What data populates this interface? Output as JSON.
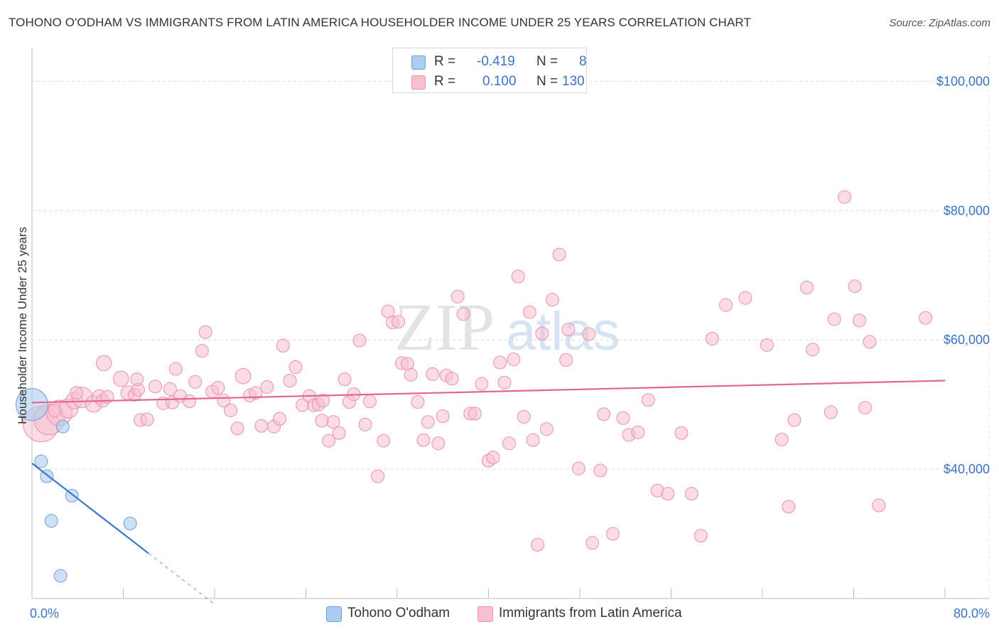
{
  "title": "TOHONO O'ODHAM VS IMMIGRANTS FROM LATIN AMERICA HOUSEHOLDER INCOME UNDER 25 YEARS CORRELATION CHART",
  "source": "Source: ZipAtlas.com",
  "watermark": {
    "zip": "ZIP",
    "atlas": "atlas"
  },
  "colors": {
    "blue_fill": "#aecbf0",
    "blue_stroke": "#6f9fd9",
    "blue_line": "#3a78cc",
    "pink_fill": "#f8bfd0",
    "pink_stroke": "#ec90ad",
    "pink_line": "#e2668f",
    "tick": "#3b73c4"
  },
  "stats": {
    "r_label": "R =",
    "n_label": "N =",
    "series": [
      {
        "r": "-0.419",
        "n": "8"
      },
      {
        "r": "0.100",
        "n": "130"
      }
    ]
  },
  "legend": [
    {
      "label": "Tohono O'odham"
    },
    {
      "label": "Immigrants from Latin America"
    }
  ],
  "chart_data": {
    "type": "scatter",
    "title": "TOHONO O'ODHAM VS IMMIGRANTS FROM LATIN AMERICA HOUSEHOLDER INCOME UNDER 25 YEARS CORRELATION CHART",
    "xlabel": "",
    "ylabel": "Householder Income Under 25 years",
    "xlim": [
      0,
      80
    ],
    "ylim": [
      20000,
      104000
    ],
    "x_tick_labels": [
      "0.0%",
      "80.0%"
    ],
    "y_ticks": [
      40000,
      60000,
      80000,
      100000
    ],
    "y_tick_labels": [
      "$40,000",
      "$60,000",
      "$80,000",
      "$100,000"
    ],
    "grid": true,
    "series": [
      {
        "name": "Tohono O'odham",
        "points": [
          [
            0,
            50000,
            2.5
          ],
          [
            2.7,
            46600,
            1
          ],
          [
            0.8,
            41200,
            1
          ],
          [
            1.3,
            38900,
            1
          ],
          [
            3.5,
            35900,
            1
          ],
          [
            1.7,
            32000,
            1
          ],
          [
            8.6,
            31600,
            1
          ],
          [
            2.5,
            23500,
            1
          ]
        ],
        "trend": {
          "x0": 0,
          "y0": 40900,
          "x1": 10.2,
          "y1": 27000,
          "dash_to_x": 16.0
        }
      },
      {
        "name": "Immigrants from Latin America",
        "points": [
          [
            0.8,
            47000,
            2.8
          ],
          [
            1.5,
            47700,
            2.4
          ],
          [
            2.4,
            48700,
            2.0
          ],
          [
            3.2,
            49400,
            1.5
          ],
          [
            3.7,
            50600,
            1.3
          ],
          [
            4.4,
            51100,
            1.6
          ],
          [
            5.4,
            50100,
            1.3
          ],
          [
            5.9,
            51200,
            1.1
          ],
          [
            6.2,
            50600,
            1.0
          ],
          [
            6.3,
            56400,
            1.2
          ],
          [
            6.6,
            51200,
            1.0
          ],
          [
            7.8,
            54000,
            1.2
          ],
          [
            8.4,
            51800,
            1.1
          ],
          [
            9.0,
            51500,
            1.0
          ],
          [
            9.3,
            52300,
            1.0
          ],
          [
            9.5,
            47600,
            1.0
          ],
          [
            10.1,
            47700,
            1.0
          ],
          [
            10.8,
            52800,
            1.0
          ],
          [
            11.5,
            50200,
            1.0
          ],
          [
            12.1,
            52400,
            1.0
          ],
          [
            12.3,
            50300,
            1.0
          ],
          [
            12.6,
            55500,
            1.0
          ],
          [
            13.0,
            51300,
            1.0
          ],
          [
            13.8,
            50500,
            1.0
          ],
          [
            14.3,
            53500,
            1.0
          ],
          [
            14.9,
            58300,
            1.0
          ],
          [
            15.2,
            61200,
            1.0
          ],
          [
            15.8,
            52000,
            1.0
          ],
          [
            16.3,
            52600,
            1.0
          ],
          [
            16.8,
            50600,
            1.0
          ],
          [
            17.4,
            49100,
            1.0
          ],
          [
            18.0,
            46300,
            1.0
          ],
          [
            18.5,
            54400,
            1.2
          ],
          [
            19.1,
            51400,
            1.0
          ],
          [
            19.6,
            51800,
            1.0
          ],
          [
            20.1,
            46700,
            1.0
          ],
          [
            20.6,
            52700,
            1.0
          ],
          [
            21.2,
            46600,
            1.0
          ],
          [
            21.7,
            47800,
            1.0
          ],
          [
            22.0,
            59100,
            1.0
          ],
          [
            22.6,
            53700,
            1.0
          ],
          [
            23.1,
            55800,
            1.0
          ],
          [
            23.7,
            49900,
            1.0
          ],
          [
            24.3,
            51300,
            1.0
          ],
          [
            24.7,
            49900,
            1.0
          ],
          [
            25.1,
            50000,
            1.0
          ],
          [
            25.5,
            50600,
            1.0
          ],
          [
            26.0,
            44400,
            1.0
          ],
          [
            26.4,
            47300,
            1.0
          ],
          [
            26.9,
            45600,
            1.0
          ],
          [
            27.4,
            53900,
            1.0
          ],
          [
            27.8,
            50400,
            1.0
          ],
          [
            28.2,
            51600,
            1.0
          ],
          [
            28.7,
            59900,
            1.0
          ],
          [
            29.2,
            46900,
            1.0
          ],
          [
            29.6,
            50500,
            1.0
          ],
          [
            30.3,
            38900,
            1.0
          ],
          [
            30.8,
            44400,
            1.0
          ],
          [
            31.2,
            64400,
            1.0
          ],
          [
            31.6,
            62700,
            1.0
          ],
          [
            32.1,
            62800,
            1.0
          ],
          [
            32.4,
            56400,
            1.0
          ],
          [
            32.9,
            56300,
            1.0
          ],
          [
            33.2,
            54600,
            1.0
          ],
          [
            33.8,
            50400,
            1.0
          ],
          [
            34.3,
            44500,
            1.0
          ],
          [
            34.7,
            47300,
            1.0
          ],
          [
            35.1,
            54700,
            1.0
          ],
          [
            35.6,
            44000,
            1.0
          ],
          [
            36.0,
            48200,
            1.0
          ],
          [
            36.3,
            54500,
            1.0
          ],
          [
            36.8,
            54000,
            1.0
          ],
          [
            37.3,
            66700,
            1.0
          ],
          [
            37.8,
            64000,
            1.0
          ],
          [
            38.4,
            48600,
            1.0
          ],
          [
            38.8,
            48600,
            1.0
          ],
          [
            39.4,
            53200,
            1.0
          ],
          [
            40.0,
            41300,
            1.0
          ],
          [
            40.4,
            41800,
            1.0
          ],
          [
            41.0,
            56500,
            1.0
          ],
          [
            41.4,
            53400,
            1.0
          ],
          [
            41.8,
            44000,
            1.0
          ],
          [
            42.2,
            57000,
            1.0
          ],
          [
            42.6,
            69800,
            1.0
          ],
          [
            43.1,
            48100,
            1.0
          ],
          [
            43.6,
            64300,
            1.0
          ],
          [
            43.9,
            44500,
            1.0
          ],
          [
            44.3,
            28300,
            1.0
          ],
          [
            44.7,
            61000,
            1.0
          ],
          [
            45.1,
            46200,
            1.0
          ],
          [
            45.6,
            66200,
            1.0
          ],
          [
            46.2,
            73200,
            1.0
          ],
          [
            46.8,
            56900,
            1.0
          ],
          [
            47.0,
            61600,
            1.0
          ],
          [
            47.9,
            40100,
            1.0
          ],
          [
            48.8,
            60900,
            1.0
          ],
          [
            49.1,
            28600,
            1.0
          ],
          [
            49.8,
            39800,
            1.0
          ],
          [
            50.1,
            48500,
            1.0
          ],
          [
            50.9,
            30000,
            1.0
          ],
          [
            51.8,
            47900,
            1.0
          ],
          [
            52.3,
            45300,
            1.0
          ],
          [
            53.1,
            45700,
            1.0
          ],
          [
            54.0,
            50700,
            1.0
          ],
          [
            54.8,
            36700,
            1.0
          ],
          [
            55.7,
            36200,
            1.0
          ],
          [
            56.9,
            45600,
            1.0
          ],
          [
            57.8,
            36200,
            1.0
          ],
          [
            59.6,
            60200,
            1.0
          ],
          [
            60.8,
            65400,
            1.0
          ],
          [
            62.5,
            66500,
            1.0
          ],
          [
            64.4,
            59200,
            1.0
          ],
          [
            65.7,
            44600,
            1.0
          ],
          [
            66.3,
            34200,
            1.0
          ],
          [
            66.8,
            47600,
            1.0
          ],
          [
            67.9,
            68100,
            1.0
          ],
          [
            68.4,
            58500,
            1.0
          ],
          [
            70.0,
            48800,
            1.0
          ],
          [
            70.3,
            63200,
            1.0
          ],
          [
            71.2,
            82100,
            1.0
          ],
          [
            72.1,
            68300,
            1.0
          ],
          [
            72.5,
            63000,
            1.0
          ],
          [
            73.0,
            49500,
            1.0
          ],
          [
            73.4,
            59700,
            1.0
          ],
          [
            74.2,
            34400,
            1.0
          ],
          [
            78.3,
            63400,
            1.0
          ],
          [
            2.0,
            49100,
            1.0
          ],
          [
            3.9,
            51800,
            1.0
          ],
          [
            9.2,
            53900,
            1.0
          ],
          [
            25.4,
            47500,
            1.0
          ],
          [
            58.6,
            29700,
            1.0
          ]
        ],
        "trend": {
          "x0": 0,
          "y0": 50300,
          "x1": 80,
          "y1": 53700
        }
      }
    ]
  }
}
